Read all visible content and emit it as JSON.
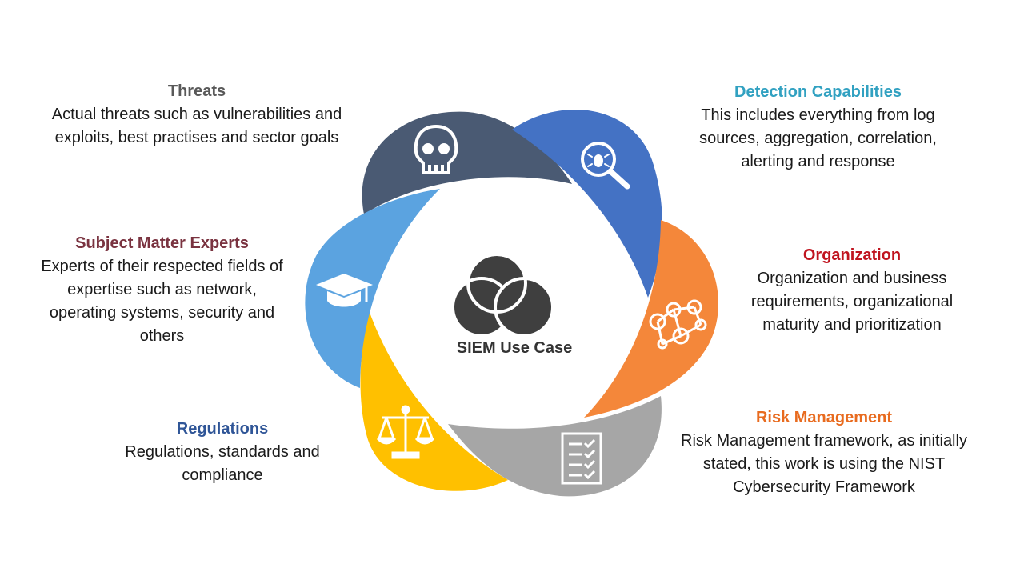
{
  "center": {
    "label": "SIEM Use Case"
  },
  "segments": [
    {
      "id": "threats",
      "title": "Threats",
      "title_color": "#595959",
      "fill": "#4a5a73",
      "icon": "skull-icon",
      "description": "Actual threats such as vulnerabilities and exploits, best practises and sector goals"
    },
    {
      "id": "detection",
      "title": "Detection Capabilities",
      "title_color": "#31a1c1",
      "fill": "#4472c4",
      "icon": "bug-magnifier-icon",
      "description": "This includes everything from log sources, aggregation, correlation, alerting and response"
    },
    {
      "id": "organization",
      "title": "Organization",
      "title_color": "#c0141f",
      "fill": "#f4873a",
      "icon": "people-network-icon",
      "description": "Organization and business requirements, organizational maturity and prioritization"
    },
    {
      "id": "risk",
      "title": "Risk Management",
      "title_color": "#e86b1f",
      "fill": "#a6a6a6",
      "icon": "checklist-icon",
      "description": "Risk Management framework, as initially stated, this work is using the NIST Cybersecurity Framework"
    },
    {
      "id": "regulations",
      "title": "Regulations",
      "title_color": "#2f5597",
      "fill": "#ffc000",
      "icon": "scales-icon",
      "description": "Regulations, standards and compliance"
    },
    {
      "id": "experts",
      "title": "Subject Matter Experts",
      "title_color": "#7a3340",
      "fill": "#5ba3e0",
      "icon": "graduation-cap-icon",
      "description": "Experts of their respected fields of expertise such as network, operating systems, security and others"
    }
  ]
}
